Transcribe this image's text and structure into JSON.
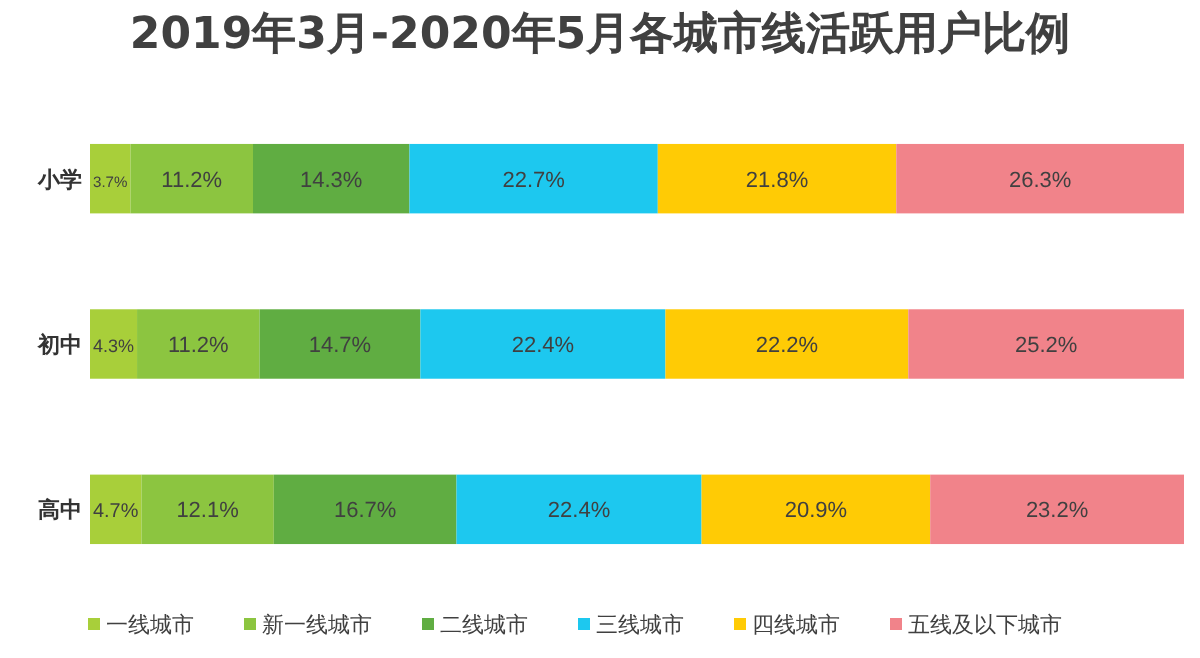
{
  "chart_data": {
    "type": "bar",
    "orientation": "horizontal",
    "stacked": true,
    "title": "2019年3月-2020年5月各城市线活跃用户比例",
    "categories": [
      "小学",
      "初中",
      "高中"
    ],
    "legend": "bottom",
    "series": [
      {
        "name": "一线城市",
        "color": "#a8cf3a",
        "values": [
          3.7,
          4.3,
          4.7
        ],
        "value_labels": [
          "3.7%",
          "4.3%",
          "4.7%"
        ]
      },
      {
        "name": "新一线城市",
        "color": "#8cc540",
        "values": [
          11.2,
          11.2,
          12.1
        ],
        "value_labels": [
          "11.2%",
          "11.2%",
          "12.1%"
        ]
      },
      {
        "name": "二线城市",
        "color": "#60ad42",
        "values": [
          14.3,
          14.7,
          16.7
        ],
        "value_labels": [
          "14.3%",
          "14.7%",
          "16.7%"
        ]
      },
      {
        "name": "三线城市",
        "color": "#1dc8ef",
        "values": [
          22.7,
          22.4,
          22.4
        ],
        "value_labels": [
          "22.7%",
          "22.4%",
          "22.4%"
        ]
      },
      {
        "name": "四线城市",
        "color": "#ffcb05",
        "values": [
          21.8,
          22.2,
          20.9
        ],
        "value_labels": [
          "21.8%",
          "22.2%",
          "20.9%"
        ]
      },
      {
        "name": "五线及以下城市",
        "color": "#f1838a",
        "values": [
          26.3,
          25.2,
          23.2
        ],
        "value_labels": [
          "26.3%",
          "25.2%",
          "23.2%"
        ]
      }
    ]
  }
}
